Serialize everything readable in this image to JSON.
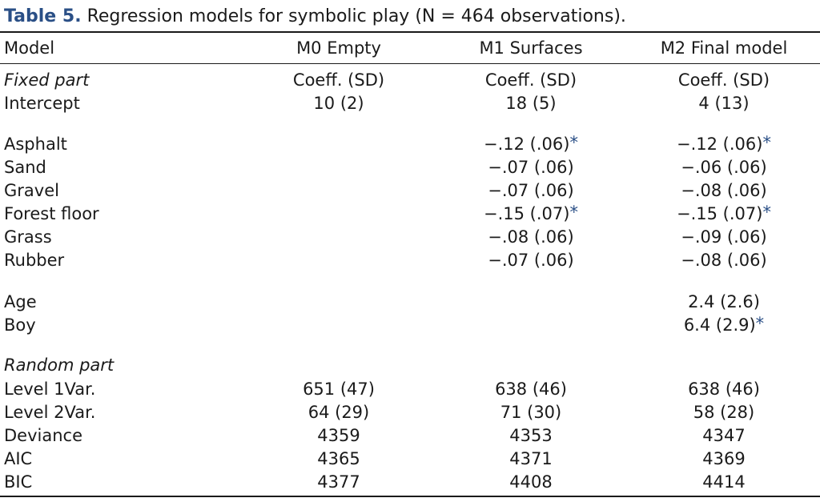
{
  "caption": {
    "label": "Table 5.",
    "text": "Regression models for symbolic play (N = 464 observations)."
  },
  "columns": [
    "Model",
    "M0 Empty",
    "M1 Surfaces",
    "M2 Final model"
  ],
  "colors": {
    "label_blue": "#2a4f86",
    "star_blue": "#2a4f86",
    "text": "#1a1a1a"
  },
  "rows": [
    {
      "label": "Fixed part",
      "italic": true,
      "m0": "Coeff. (SD)",
      "m1": "Coeff. (SD)",
      "m2": "Coeff. (SD)"
    },
    {
      "label": "Intercept",
      "m0": "10 (2)",
      "m1": "18 (5)",
      "m2": "4 (13)"
    },
    {
      "label": "Asphalt",
      "m0": "",
      "m1": "−.12 (.06)",
      "m1_star": "*",
      "m2": "−.12 (.06)",
      "m2_star": "*"
    },
    {
      "label": "Sand",
      "m0": "",
      "m1": "−.07 (.06)",
      "m2": "−.06 (.06)"
    },
    {
      "label": "Gravel",
      "m0": "",
      "m1": "−.07 (.06)",
      "m2": "−.08 (.06)"
    },
    {
      "label": "Forest floor",
      "m0": "",
      "m1": "−.15 (.07)",
      "m1_star": "*",
      "m2": "−.15 (.07)",
      "m2_star": "*"
    },
    {
      "label": "Grass",
      "m0": "",
      "m1": "−.08 (.06)",
      "m2": "−.09 (.06)"
    },
    {
      "label": "Rubber",
      "m0": "",
      "m1": "−.07 (.06)",
      "m2": "−.08 (.06)"
    },
    {
      "label": "Age",
      "m0": "",
      "m1": "",
      "m2": "2.4 (2.6)"
    },
    {
      "label": "Boy",
      "m0": "",
      "m1": "",
      "m2": "6.4 (2.9)",
      "m2_star": "*"
    },
    {
      "label": "Random part",
      "italic": true,
      "m0": "",
      "m1": "",
      "m2": ""
    },
    {
      "label": "Level 1Var.",
      "m0": "651 (47)",
      "m1": "638 (46)",
      "m2": "638 (46)"
    },
    {
      "label": "Level 2Var.",
      "m0": "64 (29)",
      "m1": "71 (30)",
      "m2": "58 (28)"
    },
    {
      "label": "Deviance",
      "m0": "4359",
      "m1": "4353",
      "m2": "4347"
    },
    {
      "label": "AIC",
      "m0": "4365",
      "m1": "4371",
      "m2": "4369"
    },
    {
      "label": "BIC",
      "m0": "4377",
      "m1": "4408",
      "m2": "4414"
    }
  ]
}
